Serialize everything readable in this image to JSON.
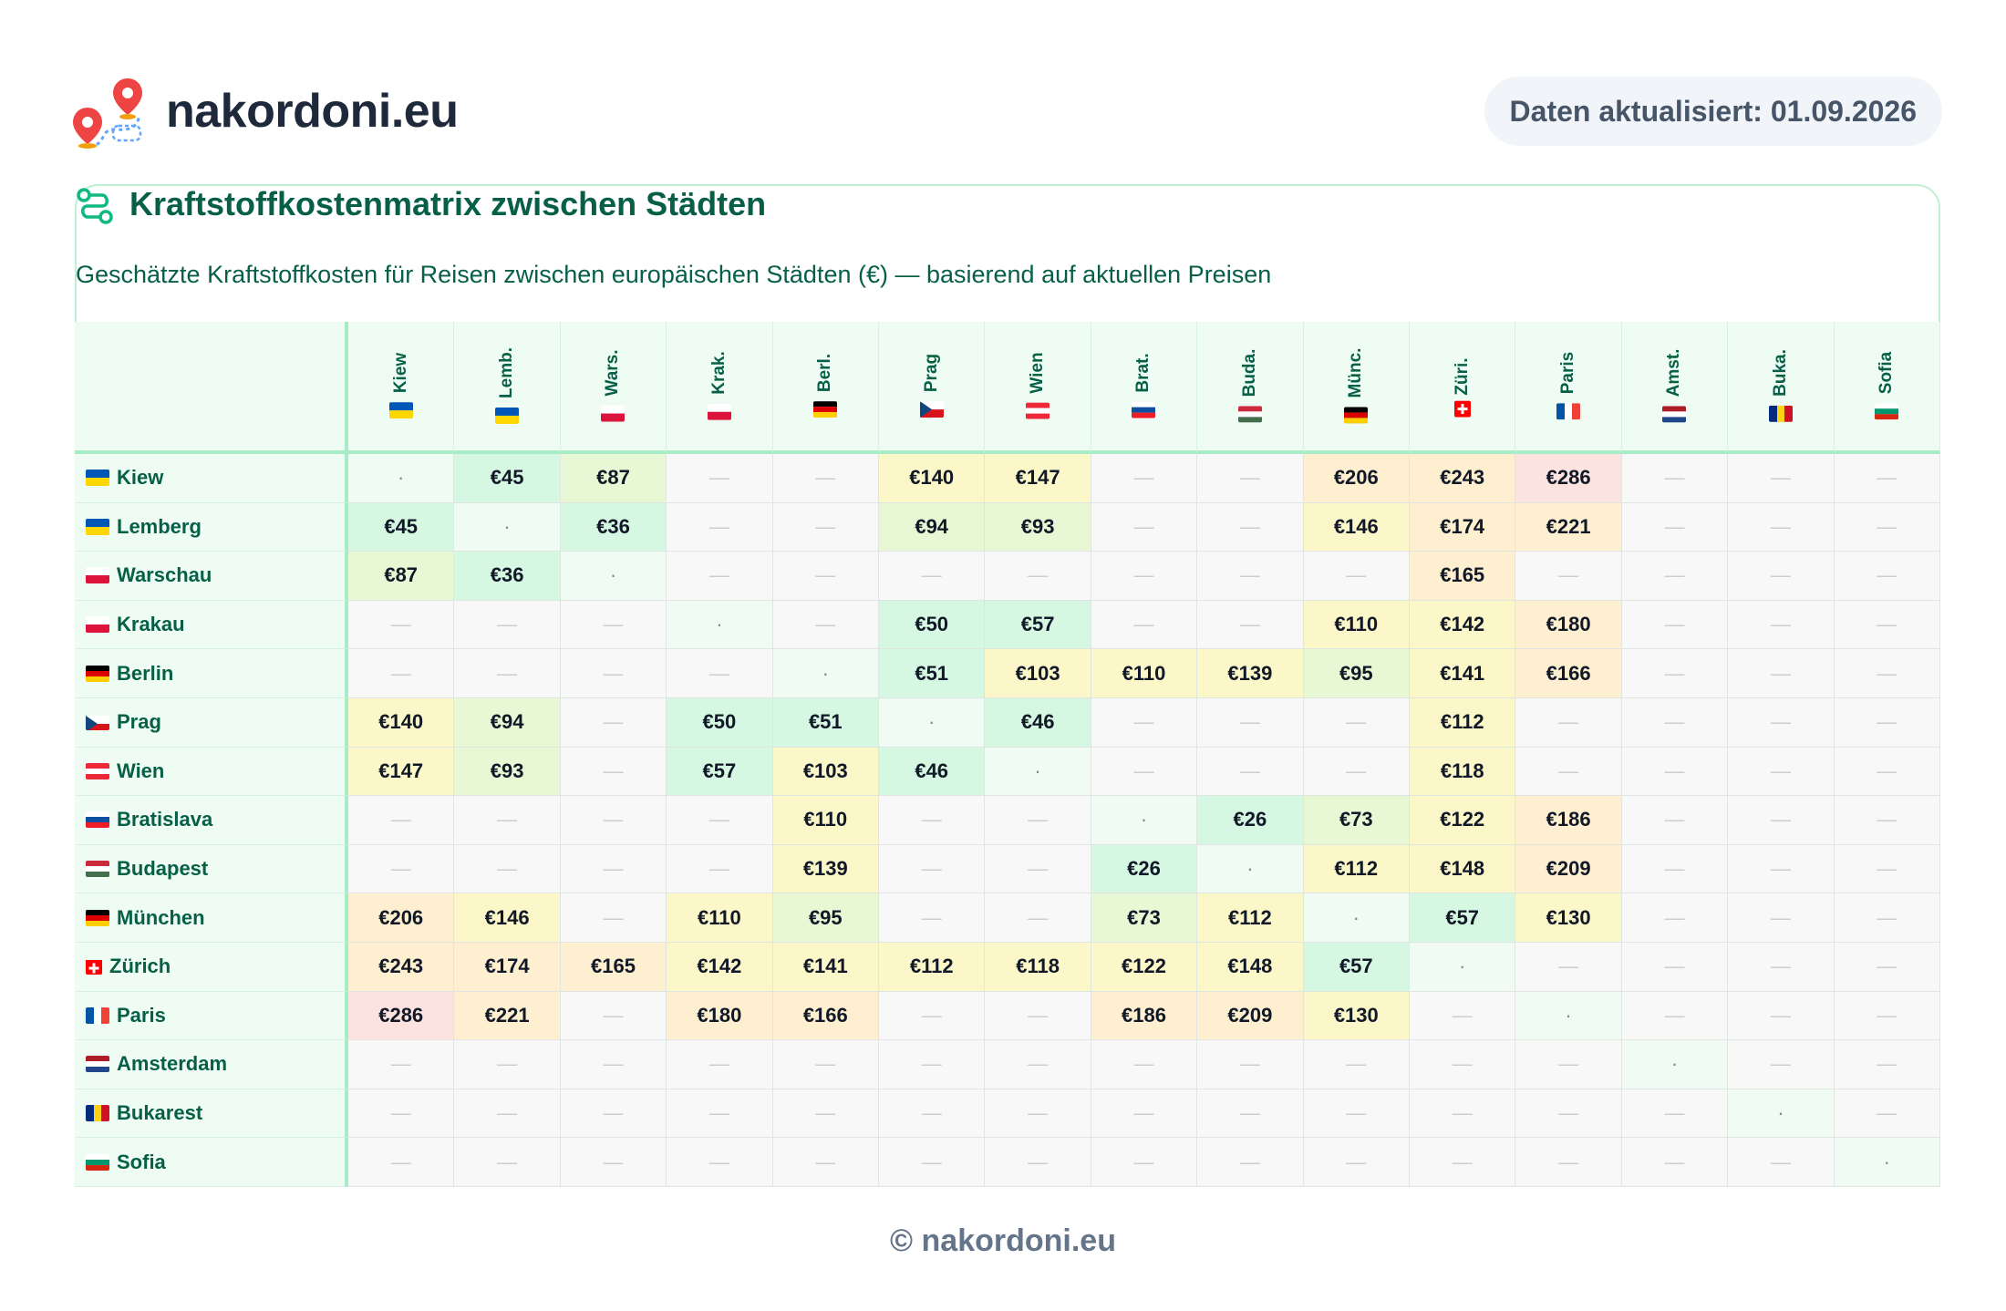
{
  "header": {
    "site_name": "nakordoni.eu",
    "update_label": "Daten aktualisiert: 01.09.2026"
  },
  "card": {
    "title": "Kraftstoffkostenmatrix zwischen Städten",
    "subtitle": "Geschätzte Kraftstoffkosten für Reisen zwischen europäischen Städten (€) — basierend auf aktuellen Preisen"
  },
  "colors": {
    "accent": "#065f46",
    "header_bg": "#eefcf3",
    "border": "#a7ecc7",
    "low": "#d6f8e3",
    "mid_low": "#e8f8d4",
    "mid": "#fbf7c9",
    "mid_high": "#fdefd0",
    "high": "#fde3df",
    "empty": "#f8f8f8"
  },
  "matrix": {
    "columns": [
      {
        "label": "Kiew",
        "flag": "ua"
      },
      {
        "label": "Lemb.",
        "flag": "ua"
      },
      {
        "label": "Wars.",
        "flag": "pl"
      },
      {
        "label": "Krak.",
        "flag": "pl"
      },
      {
        "label": "Berl.",
        "flag": "de"
      },
      {
        "label": "Prag",
        "flag": "cz"
      },
      {
        "label": "Wien",
        "flag": "at"
      },
      {
        "label": "Brat.",
        "flag": "sk"
      },
      {
        "label": "Buda.",
        "flag": "hu"
      },
      {
        "label": "Münc.",
        "flag": "de"
      },
      {
        "label": "Züri.",
        "flag": "ch"
      },
      {
        "label": "Paris",
        "flag": "fr"
      },
      {
        "label": "Amst.",
        "flag": "nl"
      },
      {
        "label": "Buka.",
        "flag": "ro"
      },
      {
        "label": "Sofia",
        "flag": "bg"
      }
    ],
    "rows": [
      {
        "label": "Kiew",
        "flag": "ua",
        "cells": [
          "·",
          "€45",
          "€87",
          "—",
          "—",
          "€140",
          "€147",
          "—",
          "—",
          "€206",
          "€243",
          "€286",
          "—",
          "—",
          "—"
        ]
      },
      {
        "label": "Lemberg",
        "flag": "ua",
        "cells": [
          "€45",
          "·",
          "€36",
          "—",
          "—",
          "€94",
          "€93",
          "—",
          "—",
          "€146",
          "€174",
          "€221",
          "—",
          "—",
          "—"
        ]
      },
      {
        "label": "Warschau",
        "flag": "pl",
        "cells": [
          "€87",
          "€36",
          "·",
          "—",
          "—",
          "—",
          "—",
          "—",
          "—",
          "—",
          "€165",
          "—",
          "—",
          "—",
          "—"
        ]
      },
      {
        "label": "Krakau",
        "flag": "pl",
        "cells": [
          "—",
          "—",
          "—",
          "·",
          "—",
          "€50",
          "€57",
          "—",
          "—",
          "€110",
          "€142",
          "€180",
          "—",
          "—",
          "—"
        ]
      },
      {
        "label": "Berlin",
        "flag": "de",
        "cells": [
          "—",
          "—",
          "—",
          "—",
          "·",
          "€51",
          "€103",
          "€110",
          "€139",
          "€95",
          "€141",
          "€166",
          "—",
          "—",
          "—"
        ]
      },
      {
        "label": "Prag",
        "flag": "cz",
        "cells": [
          "€140",
          "€94",
          "—",
          "€50",
          "€51",
          "·",
          "€46",
          "—",
          "—",
          "—",
          "€112",
          "—",
          "—",
          "—",
          "—"
        ]
      },
      {
        "label": "Wien",
        "flag": "at",
        "cells": [
          "€147",
          "€93",
          "—",
          "€57",
          "€103",
          "€46",
          "·",
          "—",
          "—",
          "—",
          "€118",
          "—",
          "—",
          "—",
          "—"
        ]
      },
      {
        "label": "Bratislava",
        "flag": "sk",
        "cells": [
          "—",
          "—",
          "—",
          "—",
          "€110",
          "—",
          "—",
          "·",
          "€26",
          "€73",
          "€122",
          "€186",
          "—",
          "—",
          "—"
        ]
      },
      {
        "label": "Budapest",
        "flag": "hu",
        "cells": [
          "—",
          "—",
          "—",
          "—",
          "€139",
          "—",
          "—",
          "€26",
          "·",
          "€112",
          "€148",
          "€209",
          "—",
          "—",
          "—"
        ]
      },
      {
        "label": "München",
        "flag": "de",
        "cells": [
          "€206",
          "€146",
          "—",
          "€110",
          "€95",
          "—",
          "—",
          "€73",
          "€112",
          "·",
          "€57",
          "€130",
          "—",
          "—",
          "—"
        ]
      },
      {
        "label": "Zürich",
        "flag": "ch",
        "cells": [
          "€243",
          "€174",
          "€165",
          "€142",
          "€141",
          "€112",
          "€118",
          "€122",
          "€148",
          "€57",
          "·",
          "—",
          "—",
          "—",
          "—"
        ]
      },
      {
        "label": "Paris",
        "flag": "fr",
        "cells": [
          "€286",
          "€221",
          "—",
          "€180",
          "€166",
          "—",
          "—",
          "€186",
          "€209",
          "€130",
          "—",
          "·",
          "—",
          "—",
          "—"
        ]
      },
      {
        "label": "Amsterdam",
        "flag": "nl",
        "cells": [
          "—",
          "—",
          "—",
          "—",
          "—",
          "—",
          "—",
          "—",
          "—",
          "—",
          "—",
          "—",
          "·",
          "—",
          "—"
        ]
      },
      {
        "label": "Bukarest",
        "flag": "ro",
        "cells": [
          "—",
          "—",
          "—",
          "—",
          "—",
          "—",
          "—",
          "—",
          "—",
          "—",
          "—",
          "—",
          "—",
          "·",
          "—"
        ]
      },
      {
        "label": "Sofia",
        "flag": "bg",
        "cells": [
          "—",
          "—",
          "—",
          "—",
          "—",
          "—",
          "—",
          "—",
          "—",
          "—",
          "—",
          "—",
          "—",
          "—",
          "·"
        ]
      }
    ]
  },
  "footer": {
    "text": "© nakordoni.eu"
  }
}
